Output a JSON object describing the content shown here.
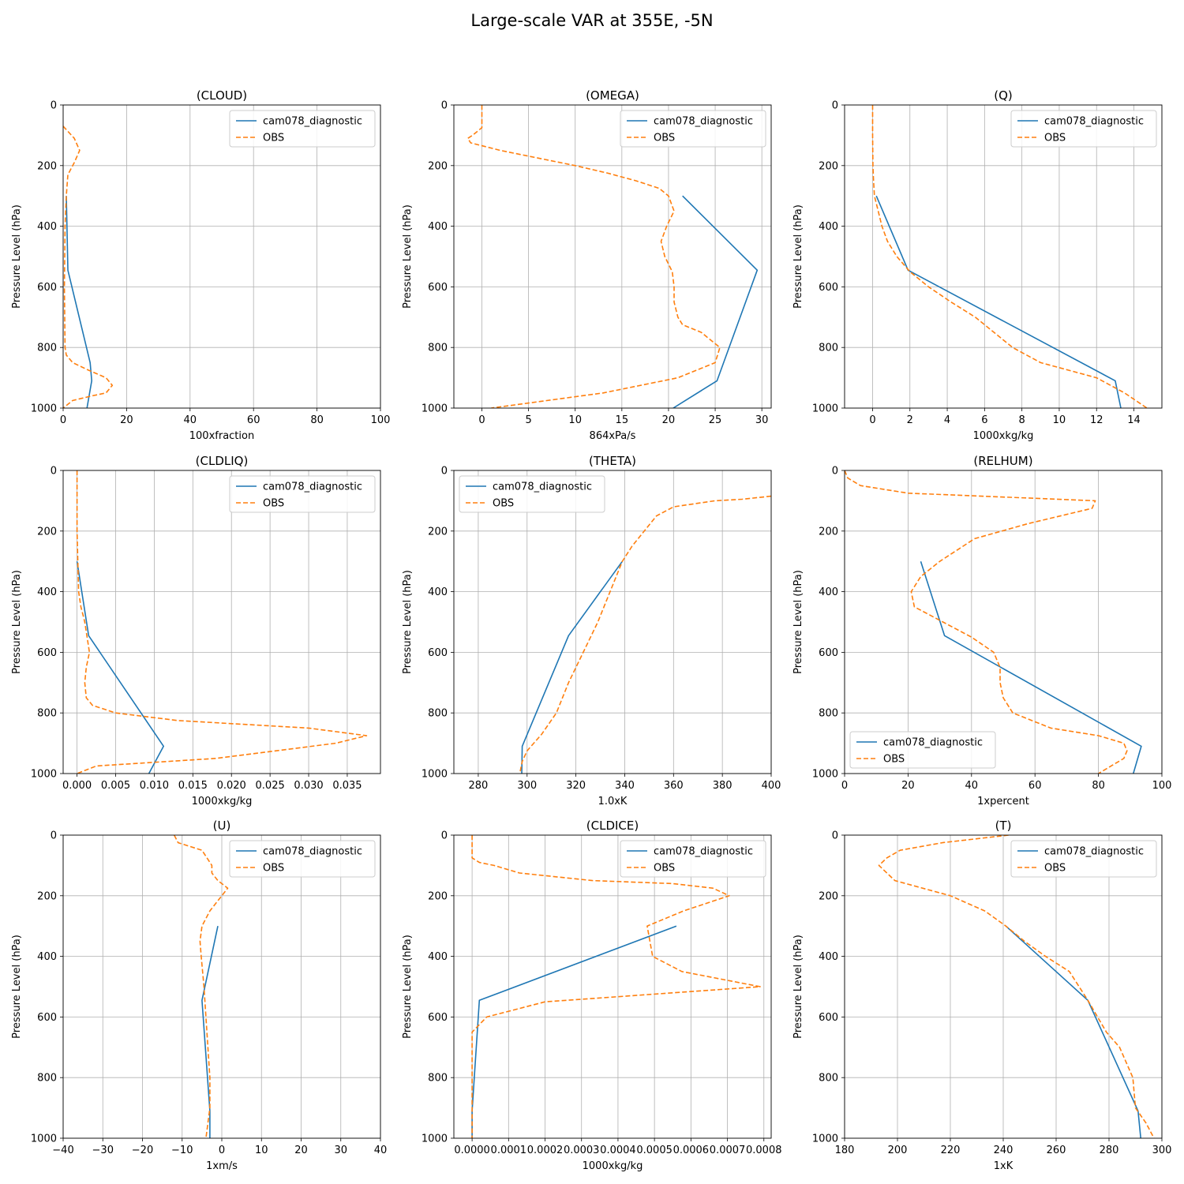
{
  "figure": {
    "title": "Large-scale VAR at 355E, -5N"
  },
  "colors": {
    "model": "#1f77b4",
    "obs": "#ff7f0e",
    "grid": "#b0b0b0"
  },
  "chart_data": [
    {
      "type": "line",
      "title": "(CLOUD)",
      "xlabel": "100xfraction",
      "ylabel": "Pressure Level (hPa)",
      "xlim": [
        0,
        100
      ],
      "ylim": [
        1000,
        0
      ],
      "xticks": [
        0,
        20,
        40,
        60,
        80,
        100
      ],
      "xtick_labels": [
        "0",
        "20",
        "40",
        "60",
        "80",
        "100"
      ],
      "yticks": [
        0,
        200,
        400,
        600,
        800,
        1000
      ],
      "legend": "upper right",
      "grid": true,
      "series": [
        {
          "name": "cam078_diagnostic",
          "style": "solid",
          "x": [
            1.0,
            1.5,
            8.5,
            9.0,
            7.5
          ],
          "y": [
            300,
            545,
            850,
            910,
            1000
          ]
        },
        {
          "name": "OBS",
          "style": "dashed",
          "x": [
            0,
            3.5,
            5.2,
            3.5,
            1.5,
            1.0,
            0.6,
            0.5,
            0.4,
            0.5,
            0.6,
            1.0,
            3.0,
            8.0,
            13.5,
            15.5,
            13.5,
            9.0,
            3.0,
            0
          ],
          "y": [
            70,
            110,
            150,
            190,
            230,
            300,
            400,
            500,
            600,
            700,
            800,
            825,
            850,
            875,
            900,
            925,
            950,
            960,
            975,
            1000
          ]
        }
      ]
    },
    {
      "type": "line",
      "title": "(OMEGA)",
      "xlabel": "864xPa/s",
      "ylabel": "Pressure Level (hPa)",
      "xlim": [
        -3,
        31
      ],
      "ylim": [
        1000,
        0
      ],
      "xticks": [
        0,
        5,
        10,
        15,
        20,
        25,
        30
      ],
      "xtick_labels": [
        "0",
        "5",
        "10",
        "15",
        "20",
        "25",
        "30"
      ],
      "yticks": [
        0,
        200,
        400,
        600,
        800,
        1000
      ],
      "legend": "upper right",
      "grid": true,
      "series": [
        {
          "name": "cam078_diagnostic",
          "style": "solid",
          "x": [
            21.5,
            29.5,
            25.2,
            20.5
          ],
          "y": [
            300,
            545,
            910,
            1000
          ]
        },
        {
          "name": "OBS",
          "style": "dashed",
          "x": [
            0,
            0,
            0,
            -1.0,
            -1.5,
            -1.2,
            2.0,
            6.0,
            10.0,
            13.5,
            16.5,
            19.0,
            20.0,
            20.6,
            19.8,
            19.2,
            19.6,
            20.4,
            20.6,
            20.6,
            21.0,
            21.5,
            23.5,
            25.5,
            25.0,
            21.0,
            13.0,
            1.0
          ],
          "y": [
            0,
            50,
            75,
            100,
            110,
            125,
            150,
            175,
            200,
            225,
            250,
            275,
            300,
            350,
            400,
            450,
            500,
            550,
            600,
            650,
            700,
            725,
            750,
            800,
            850,
            900,
            950,
            1000
          ]
        }
      ]
    },
    {
      "type": "line",
      "title": "(Q)",
      "xlabel": "1000xkg/kg",
      "ylabel": "Pressure Level (hPa)",
      "xlim": [
        -1.5,
        15.5
      ],
      "ylim": [
        1000,
        0
      ],
      "xticks": [
        0,
        2,
        4,
        6,
        8,
        10,
        12,
        14
      ],
      "xtick_labels": [
        "0",
        "2",
        "4",
        "6",
        "8",
        "10",
        "12",
        "14"
      ],
      "yticks": [
        0,
        200,
        400,
        600,
        800,
        1000
      ],
      "legend": "upper right",
      "grid": true,
      "series": [
        {
          "name": "cam078_diagnostic",
          "style": "solid",
          "x": [
            0.2,
            1.9,
            13.0,
            13.3
          ],
          "y": [
            300,
            545,
            910,
            1000
          ]
        },
        {
          "name": "OBS",
          "style": "dashed",
          "x": [
            0,
            0,
            0.02,
            0.05,
            0.1,
            0.3,
            0.5,
            0.8,
            1.3,
            2.0,
            3.0,
            4.2,
            5.5,
            6.5,
            7.5,
            9.0,
            10.5,
            12.0,
            13.5,
            14.7
          ],
          "y": [
            0,
            100,
            200,
            250,
            300,
            350,
            400,
            450,
            500,
            550,
            600,
            650,
            700,
            750,
            800,
            850,
            875,
            900,
            950,
            1000
          ]
        }
      ]
    },
    {
      "type": "line",
      "title": "(CLDLIQ)",
      "xlabel": "1000xkg/kg",
      "ylabel": "Pressure Level (hPa)",
      "xlim": [
        -0.0018,
        0.0393
      ],
      "ylim": [
        1000,
        0
      ],
      "xticks": [
        0,
        0.005,
        0.01,
        0.015,
        0.02,
        0.025,
        0.03,
        0.035
      ],
      "xtick_labels": [
        "0.000",
        "0.005",
        "0.010",
        "0.015",
        "0.020",
        "0.025",
        "0.030",
        "0.035"
      ],
      "yticks": [
        0,
        200,
        400,
        600,
        800,
        1000
      ],
      "legend": "upper right",
      "grid": true,
      "series": [
        {
          "name": "cam078_diagnostic",
          "style": "solid",
          "x": [
            0,
            0.0015,
            0.0112,
            0.0093
          ],
          "y": [
            300,
            545,
            910,
            1000
          ]
        },
        {
          "name": "OBS",
          "style": "dashed",
          "x": [
            0,
            0,
            0.0001,
            0.0002,
            0.0005,
            0.001,
            0.0016,
            0.0012,
            0.001,
            0.0012,
            0.002,
            0.005,
            0.013,
            0.03,
            0.0375,
            0.0335,
            0.018,
            0.0025,
            0
          ],
          "y": [
            0,
            200,
            300,
            400,
            450,
            500,
            600,
            650,
            700,
            750,
            775,
            800,
            825,
            850,
            875,
            900,
            950,
            975,
            1000
          ]
        }
      ]
    },
    {
      "type": "line",
      "title": "(THETA)",
      "xlabel": "1.0xK",
      "ylabel": "Pressure Level (hPa)",
      "xlim": [
        270,
        400
      ],
      "ylim": [
        1000,
        0
      ],
      "xticks": [
        280,
        300,
        320,
        340,
        360,
        380,
        400
      ],
      "xtick_labels": [
        "280",
        "300",
        "320",
        "340",
        "360",
        "380",
        "400"
      ],
      "yticks": [
        0,
        200,
        400,
        600,
        800,
        1000
      ],
      "legend": "upper left",
      "grid": true,
      "series": [
        {
          "name": "cam078_diagnostic",
          "style": "solid",
          "x": [
            339,
            317,
            298,
            297.8
          ],
          "y": [
            300,
            545,
            910,
            1000
          ]
        },
        {
          "name": "OBS",
          "style": "dashed",
          "x": [
            400,
            388,
            377,
            360,
            353,
            348,
            343,
            339,
            334,
            329,
            323,
            317,
            312,
            306,
            300,
            298,
            297
          ],
          "y": [
            85,
            95,
            100,
            120,
            150,
            200,
            250,
            300,
            400,
            500,
            600,
            700,
            800,
            870,
            925,
            960,
            1000
          ]
        }
      ]
    },
    {
      "type": "line",
      "title": "(RELHUM)",
      "xlabel": "1xpercent",
      "ylabel": "Pressure Level (hPa)",
      "xlim": [
        0,
        100
      ],
      "ylim": [
        1000,
        0
      ],
      "xticks": [
        0,
        20,
        40,
        60,
        80,
        100
      ],
      "xtick_labels": [
        "0",
        "20",
        "40",
        "60",
        "80",
        "100"
      ],
      "yticks": [
        0,
        200,
        400,
        600,
        800,
        1000
      ],
      "legend": "lower left",
      "grid": true,
      "series": [
        {
          "name": "cam078_diagnostic",
          "style": "solid",
          "x": [
            24,
            31.5,
            93.5,
            91
          ],
          "y": [
            300,
            545,
            910,
            1000
          ]
        },
        {
          "name": "OBS",
          "style": "dashed",
          "x": [
            0,
            1,
            5,
            20,
            79,
            78,
            58,
            41,
            30,
            24,
            21,
            22,
            31,
            40,
            47,
            49,
            49,
            50,
            53,
            65,
            80,
            88,
            89,
            88,
            80
          ],
          "y": [
            0,
            25,
            50,
            75,
            100,
            125,
            175,
            225,
            300,
            350,
            400,
            450,
            500,
            550,
            600,
            650,
            700,
            750,
            800,
            850,
            875,
            900,
            925,
            950,
            1000
          ]
        }
      ]
    },
    {
      "type": "line",
      "title": "(U)",
      "xlabel": "1xm/s",
      "ylabel": "Pressure Level (hPa)",
      "xlim": [
        -40,
        40
      ],
      "ylim": [
        1000,
        0
      ],
      "xticks": [
        -40,
        -30,
        -20,
        -10,
        0,
        10,
        20,
        30,
        40
      ],
      "xtick_labels": [
        "−40",
        "−30",
        "−20",
        "−10",
        "0",
        "10",
        "20",
        "30",
        "40"
      ],
      "yticks": [
        0,
        200,
        400,
        600,
        800,
        1000
      ],
      "legend": "upper right",
      "grid": true,
      "series": [
        {
          "name": "cam078_diagnostic",
          "style": "solid",
          "x": [
            -1,
            -5,
            -3,
            -3
          ],
          "y": [
            300,
            545,
            910,
            1000
          ]
        },
        {
          "name": "OBS",
          "style": "dashed",
          "x": [
            -12,
            -11,
            -5,
            -2.5,
            -2.5,
            -1,
            1.5,
            0,
            -3,
            -5,
            -5.5,
            -5.2,
            -4.5,
            -4,
            -3.5,
            -3,
            -3,
            -3.5,
            -4
          ],
          "y": [
            0,
            25,
            50,
            100,
            125,
            150,
            175,
            200,
            250,
            300,
            350,
            400,
            500,
            600,
            700,
            800,
            900,
            950,
            1000
          ]
        }
      ]
    },
    {
      "type": "line",
      "title": "(CLDICE)",
      "xlabel": "1000xkg/kg",
      "ylabel": "Pressure Level (hPa)",
      "xlim": [
        -5e-05,
        0.00082
      ],
      "ylim": [
        1000,
        0
      ],
      "xticks": [
        0,
        0.0001,
        0.0002,
        0.0003,
        0.0004,
        0.0005,
        0.0006,
        0.0007,
        0.0008
      ],
      "xtick_labels": [
        "0.0000",
        "0.0001",
        "0.0002",
        "0.0003",
        "0.0004",
        "0.0005",
        "0.0006",
        "0.0007",
        "0.0008"
      ],
      "yticks": [
        0,
        200,
        400,
        600,
        800,
        1000
      ],
      "legend": "upper right",
      "grid": true,
      "series": [
        {
          "name": "cam078_diagnostic",
          "style": "solid",
          "x": [
            0.00056,
            2e-05,
            0,
            0
          ],
          "y": [
            300,
            545,
            910,
            1000
          ]
        },
        {
          "name": "OBS",
          "style": "dashed",
          "x": [
            0,
            0,
            2e-05,
            6e-05,
            0.00013,
            0.00033,
            0.00055,
            0.00066,
            0.000705,
            0.00058,
            0.00048,
            0.000495,
            0.000575,
            0.00079,
            0.0002,
            4e-05,
            0,
            0,
            0
          ],
          "y": [
            0,
            75,
            90,
            100,
            125,
            150,
            160,
            175,
            200,
            250,
            300,
            400,
            450,
            500,
            550,
            600,
            650,
            800,
            1000
          ]
        }
      ]
    },
    {
      "type": "line",
      "title": "(T)",
      "xlabel": "1xK",
      "ylabel": "Pressure Level (hPa)",
      "xlim": [
        180,
        300
      ],
      "ylim": [
        1000,
        0
      ],
      "xticks": [
        180,
        200,
        220,
        240,
        260,
        280,
        300
      ],
      "xtick_labels": [
        "180",
        "200",
        "220",
        "240",
        "260",
        "280",
        "300"
      ],
      "yticks": [
        0,
        200,
        400,
        600,
        800,
        1000
      ],
      "legend": "upper right",
      "grid": true,
      "series": [
        {
          "name": "cam078_diagnostic",
          "style": "solid",
          "x": [
            241,
            272,
            291,
            292
          ],
          "y": [
            300,
            545,
            910,
            1000
          ]
        },
        {
          "name": "OBS",
          "style": "dashed",
          "x": [
            242,
            217,
            201,
            196,
            193,
            199,
            220,
            233,
            241,
            248,
            256,
            265,
            272,
            279,
            284,
            289,
            290,
            294,
            297
          ],
          "y": [
            0,
            25,
            50,
            75,
            100,
            150,
            200,
            250,
            300,
            350,
            400,
            450,
            545,
            650,
            700,
            800,
            900,
            950,
            1000
          ]
        }
      ]
    }
  ]
}
